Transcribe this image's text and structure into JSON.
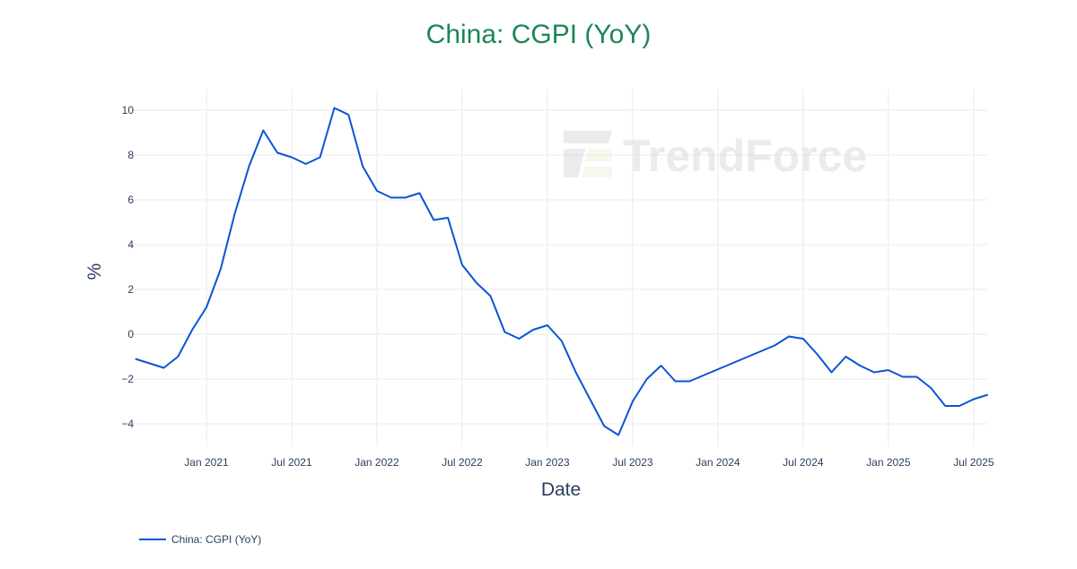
{
  "title": "China: CGPI (YoY)",
  "colors": {
    "title": "#1a8754",
    "line": "#0b54d4",
    "grid": "#f0f1f4",
    "text": "#2a3f5f"
  },
  "watermark": "TrendForce",
  "legend": {
    "items": [
      {
        "label": "China: CGPI (YoY)",
        "color": "#0b54d4"
      }
    ]
  },
  "chart_data": {
    "type": "line",
    "title": "China: CGPI (YoY)",
    "xlabel": "Date",
    "ylabel": "%",
    "ylim": [
      -5.2,
      10.9
    ],
    "grid": true,
    "legend_position": "bottom-left",
    "x_ticks": [
      "Jan 2021",
      "Jul 2021",
      "Jan 2022",
      "Jul 2022",
      "Jan 2023",
      "Jul 2023",
      "Jan 2024",
      "Jul 2024",
      "Jan 2025",
      "Jul 2025"
    ],
    "y_ticks": [
      -4,
      -2,
      0,
      2,
      4,
      6,
      8,
      10
    ],
    "series": [
      {
        "name": "China: CGPI (YoY)",
        "x": [
          "2020-08",
          "2020-09",
          "2020-10",
          "2020-11",
          "2020-12",
          "2021-01",
          "2021-02",
          "2021-03",
          "2021-04",
          "2021-05",
          "2021-06",
          "2021-07",
          "2021-08",
          "2021-09",
          "2021-10",
          "2021-11",
          "2021-12",
          "2022-01",
          "2022-02",
          "2022-03",
          "2022-04",
          "2022-05",
          "2022-06",
          "2022-07",
          "2022-08",
          "2022-09",
          "2022-10",
          "2022-11",
          "2022-12",
          "2023-01",
          "2023-02",
          "2023-03",
          "2023-04",
          "2023-05",
          "2023-06",
          "2023-07",
          "2023-08",
          "2023-09",
          "2023-10",
          "2023-11",
          "2024-05",
          "2024-06",
          "2024-07",
          "2024-08",
          "2024-09",
          "2024-10",
          "2024-11",
          "2024-12",
          "2025-01",
          "2025-02",
          "2025-03",
          "2025-04",
          "2025-05",
          "2025-06",
          "2025-07",
          "2025-08"
        ],
        "values": [
          -1.1,
          -1.3,
          -1.5,
          -1.0,
          0.2,
          1.2,
          2.9,
          5.4,
          7.5,
          9.1,
          8.1,
          7.9,
          7.6,
          7.9,
          10.1,
          9.8,
          7.5,
          6.4,
          6.1,
          6.1,
          6.3,
          5.1,
          5.2,
          3.1,
          2.3,
          1.7,
          0.1,
          -0.2,
          0.2,
          0.4,
          -0.3,
          -1.7,
          -2.9,
          -4.1,
          -4.5,
          -3.0,
          -2.0,
          -1.4,
          -2.1,
          -2.1,
          -0.5,
          -0.1,
          -0.2,
          -0.9,
          -1.7,
          -1.0,
          -1.4,
          -1.7,
          -1.6,
          -1.9,
          -1.9,
          -2.4,
          -3.2,
          -3.2,
          -2.9,
          -2.7
        ]
      }
    ]
  }
}
